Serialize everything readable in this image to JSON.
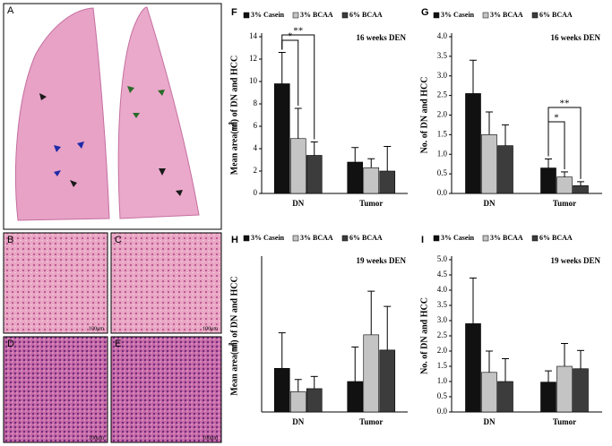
{
  "panels": {
    "a": "A",
    "b": "B",
    "c": "C",
    "d": "D",
    "e": "E",
    "scale_b": "100μm",
    "scale_c": "100μm",
    "scale_d": "100μm",
    "scale_e": "100μm"
  },
  "chart_data": [
    {
      "type": "bar",
      "panel": "F",
      "title": "16 weeks DEN",
      "ylabel": "Mean area(㎟) of DN and HCC",
      "categories": [
        "DN",
        "Tumor"
      ],
      "series": [
        {
          "name": "3% Casein",
          "color": "#111111",
          "values": [
            9.8,
            2.8
          ],
          "errors": [
            2.8,
            1.3
          ]
        },
        {
          "name": "3% BCAA",
          "color": "#c4c4c4",
          "values": [
            4.9,
            2.3
          ],
          "errors": [
            2.7,
            0.8
          ]
        },
        {
          "name": "6% BCAA",
          "color": "#3c3c3c",
          "values": [
            3.4,
            2.0
          ],
          "errors": [
            1.2,
            2.2
          ]
        }
      ],
      "ylim": [
        0,
        14
      ],
      "yticks": [
        0,
        2,
        4,
        6,
        8,
        10,
        12,
        14
      ],
      "annotations": [
        "*",
        "**"
      ]
    },
    {
      "type": "bar",
      "panel": "G",
      "title": "16 weeks DEN",
      "ylabel": "No. of DN and HCC",
      "categories": [
        "DN",
        "Tumor"
      ],
      "series": [
        {
          "name": "3% Casein",
          "color": "#111111",
          "values": [
            2.55,
            0.65
          ],
          "errors": [
            0.85,
            0.23
          ]
        },
        {
          "name": "3% BCAA",
          "color": "#c4c4c4",
          "values": [
            1.5,
            0.42
          ],
          "errors": [
            0.58,
            0.13
          ]
        },
        {
          "name": "6% BCAA",
          "color": "#3c3c3c",
          "values": [
            1.22,
            0.2
          ],
          "errors": [
            0.53,
            0.1
          ]
        }
      ],
      "ylim": [
        0,
        4
      ],
      "yticks": [
        {
          "value": 0,
          "label": "0.0"
        },
        0.5,
        {
          "value": 1,
          "label": "1.0"
        },
        1.5,
        {
          "value": 2,
          "label": "2.0"
        },
        2.5,
        {
          "value": 3,
          "label": "3.0"
        },
        3.5,
        {
          "value": 4,
          "label": "4.0"
        }
      ],
      "annotations": [
        "*",
        "**"
      ]
    },
    {
      "type": "bar",
      "panel": "H",
      "title": "19 weeks DEN",
      "ylabel": "Mean area(㎟) of DN and HCC",
      "categories": [
        "DN",
        "Tumor"
      ],
      "series": [
        {
          "name": "3% Casein",
          "color": "#111111",
          "values": [
            8.6,
            6.0
          ],
          "errors": [
            7.0,
            6.8
          ]
        },
        {
          "name": "3% BCAA",
          "color": "#c4c4c4",
          "values": [
            4.0,
            15.2
          ],
          "errors": [
            2.4,
            8.6
          ]
        },
        {
          "name": "6% BCAA",
          "color": "#3c3c3c",
          "values": [
            4.6,
            12.2
          ],
          "errors": [
            2.4,
            8.6
          ]
        }
      ],
      "ylim": [
        0,
        30
      ]
    },
    {
      "type": "bar",
      "panel": "I",
      "title": "19 weeks DEN",
      "ylabel": "No. of DN and HCC",
      "categories": [
        "DN",
        "Tumor"
      ],
      "series": [
        {
          "name": "3% Casein",
          "color": "#111111",
          "values": [
            2.9,
            0.98
          ],
          "errors": [
            1.5,
            0.37
          ]
        },
        {
          "name": "3% BCAA",
          "color": "#c4c4c4",
          "values": [
            1.3,
            1.5
          ],
          "errors": [
            0.7,
            0.75
          ]
        },
        {
          "name": "6% BCAA",
          "color": "#3c3c3c",
          "values": [
            1.0,
            1.42
          ],
          "errors": [
            0.75,
            0.6
          ]
        }
      ],
      "ylim": [
        0,
        5
      ],
      "yticks": [
        {
          "value": 0,
          "label": "0.0"
        },
        0.5,
        {
          "value": 1,
          "label": "1.0"
        },
        1.5,
        {
          "value": 2,
          "label": "2.0"
        },
        2.5,
        {
          "value": 3,
          "label": "3.0"
        },
        3.5,
        {
          "value": 4,
          "label": "4.0"
        },
        4.5,
        {
          "value": 5,
          "label": "5.0"
        }
      ]
    }
  ]
}
